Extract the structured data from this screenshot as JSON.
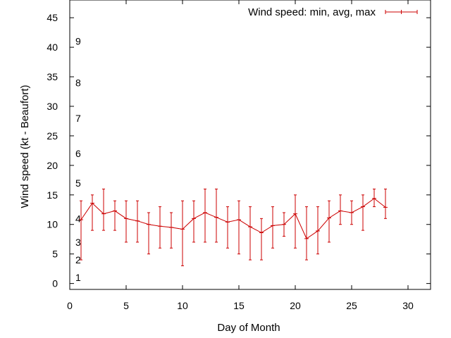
{
  "chart_data": {
    "type": "line",
    "title": "",
    "xlabel": "Day of Month",
    "ylabel": "Wind speed (kt - Beaufort)",
    "xlim": [
      0,
      32
    ],
    "ylim": [
      -1,
      48
    ],
    "xticks": [
      0,
      5,
      10,
      15,
      20,
      25,
      30
    ],
    "yticks": [
      0,
      5,
      10,
      15,
      20,
      25,
      30,
      35,
      40,
      45
    ],
    "grid": false,
    "legend_position": "top-right",
    "series_color": "#cc0000",
    "beaufort_labels": [
      {
        "label": "1",
        "value": 1
      },
      {
        "label": "2",
        "value": 4
      },
      {
        "label": "3",
        "value": 7
      },
      {
        "label": "4",
        "value": 11
      },
      {
        "label": "5",
        "value": 17
      },
      {
        "label": "6",
        "value": 22
      },
      {
        "label": "7",
        "value": 28
      },
      {
        "label": "8",
        "value": 34
      },
      {
        "label": "9",
        "value": 41
      }
    ],
    "series": [
      {
        "name": "Wind speed: min, avg, max",
        "x": [
          1,
          2,
          3,
          4,
          5,
          6,
          7,
          8,
          9,
          10,
          11,
          12,
          13,
          14,
          15,
          16,
          17,
          18,
          19,
          20,
          21,
          22,
          23,
          24,
          25,
          26,
          27,
          28
        ],
        "avg": [
          10.8,
          13.6,
          11.8,
          12.3,
          11.0,
          10.6,
          10.0,
          9.7,
          9.5,
          9.2,
          11.0,
          12.0,
          11.2,
          10.4,
          10.8,
          9.6,
          8.6,
          9.8,
          10.0,
          11.8,
          7.6,
          8.9,
          11.1,
          12.3,
          12.0,
          13.0,
          14.4,
          12.9
        ],
        "min": [
          4,
          9,
          9,
          9,
          7,
          7,
          5,
          6,
          6,
          3,
          7,
          7,
          7,
          6,
          5,
          4,
          4,
          6,
          8,
          6,
          4,
          5,
          7,
          10,
          10,
          9,
          13,
          11
        ],
        "max": [
          14,
          15,
          16,
          14,
          14,
          14,
          12,
          13,
          12,
          14,
          14,
          16,
          16,
          13,
          14,
          13,
          11,
          13,
          12,
          15,
          13,
          13,
          14,
          15,
          14,
          15,
          16,
          16
        ]
      }
    ]
  }
}
